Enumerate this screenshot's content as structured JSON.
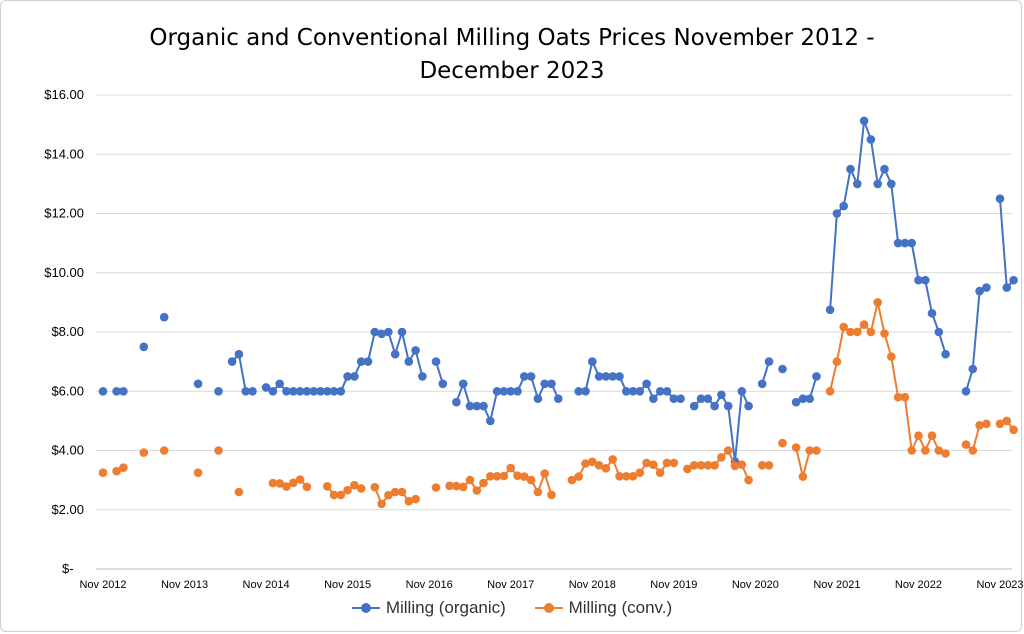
{
  "chart_data": {
    "type": "line",
    "title_line1": "Organic and Conventional Milling Oats Prices November 2012 -",
    "title_line2": "December 2023",
    "x_tick_labels": [
      "Nov 2012",
      "Nov 2013",
      "Nov 2014",
      "Nov 2015",
      "Nov 2016",
      "Nov 2017",
      "Nov 2018",
      "Nov 2019",
      "Nov 2020",
      "Nov 2021",
      "Nov 2022",
      "Nov 2023"
    ],
    "y_tick_labels": [
      "$-",
      "$2.00",
      "$4.00",
      "$6.00",
      "$8.00",
      "$10.00",
      "$12.00",
      "$14.00",
      "$16.00"
    ],
    "ylim": [
      0,
      16
    ],
    "y_tick_step": 2,
    "x_start": "2012-11",
    "x_end": "2023-11",
    "grid": true,
    "legend_position": "bottom",
    "series": [
      {
        "name": "Milling (organic)",
        "color": "#4472c4",
        "points": [
          [
            "2012-11",
            6.0
          ],
          [
            "2013-01",
            6.0
          ],
          [
            "2013-02",
            6.0
          ],
          [
            "2013-05",
            7.5
          ],
          [
            "2013-08",
            8.5
          ],
          [
            "2014-01",
            6.25
          ],
          [
            "2014-04",
            6.0
          ],
          [
            "2014-06",
            7.0
          ],
          [
            "2014-07",
            7.25
          ],
          [
            "2014-08",
            6.0
          ],
          [
            "2014-09",
            6.0
          ],
          [
            "2014-11",
            6.13
          ],
          [
            "2014-12",
            6.0
          ],
          [
            "2015-01",
            6.25
          ],
          [
            "2015-02",
            6.0
          ],
          [
            "2015-03",
            6.0
          ],
          [
            "2015-04",
            6.0
          ],
          [
            "2015-05",
            6.0
          ],
          [
            "2015-06",
            6.0
          ],
          [
            "2015-07",
            6.0
          ],
          [
            "2015-08",
            6.0
          ],
          [
            "2015-09",
            6.0
          ],
          [
            "2015-10",
            6.0
          ],
          [
            "2015-11",
            6.5
          ],
          [
            "2015-12",
            6.5
          ],
          [
            "2016-01",
            7.0
          ],
          [
            "2016-02",
            7.0
          ],
          [
            "2016-03",
            8.0
          ],
          [
            "2016-04",
            7.94
          ],
          [
            "2016-05",
            8.0
          ],
          [
            "2016-06",
            7.25
          ],
          [
            "2016-07",
            8.0
          ],
          [
            "2016-08",
            7.0
          ],
          [
            "2016-09",
            7.38
          ],
          [
            "2016-10",
            6.5
          ],
          [
            "2016-12",
            7.0
          ],
          [
            "2017-01",
            6.25
          ],
          [
            "2017-03",
            5.63
          ],
          [
            "2017-04",
            6.25
          ],
          [
            "2017-05",
            5.5
          ],
          [
            "2017-06",
            5.5
          ],
          [
            "2017-07",
            5.5
          ],
          [
            "2017-08",
            5.0
          ],
          [
            "2017-09",
            6.0
          ],
          [
            "2017-10",
            6.0
          ],
          [
            "2017-11",
            6.0
          ],
          [
            "2017-12",
            6.0
          ],
          [
            "2018-01",
            6.5
          ],
          [
            "2018-02",
            6.5
          ],
          [
            "2018-03",
            5.75
          ],
          [
            "2018-04",
            6.25
          ],
          [
            "2018-05",
            6.25
          ],
          [
            "2018-06",
            5.75
          ],
          [
            "2018-09",
            6.0
          ],
          [
            "2018-10",
            6.0
          ],
          [
            "2018-11",
            7.0
          ],
          [
            "2018-12",
            6.5
          ],
          [
            "2019-01",
            6.5
          ],
          [
            "2019-02",
            6.5
          ],
          [
            "2019-03",
            6.5
          ],
          [
            "2019-04",
            6.0
          ],
          [
            "2019-05",
            6.0
          ],
          [
            "2019-06",
            6.0
          ],
          [
            "2019-07",
            6.25
          ],
          [
            "2019-08",
            5.75
          ],
          [
            "2019-09",
            6.0
          ],
          [
            "2019-10",
            6.0
          ],
          [
            "2019-11",
            5.75
          ],
          [
            "2019-12",
            5.75
          ],
          [
            "2020-02",
            5.5
          ],
          [
            "2020-03",
            5.75
          ],
          [
            "2020-04",
            5.75
          ],
          [
            "2020-05",
            5.5
          ],
          [
            "2020-06",
            5.88
          ],
          [
            "2020-07",
            5.5
          ],
          [
            "2020-08",
            3.63
          ],
          [
            "2020-09",
            6.0
          ],
          [
            "2020-10",
            5.5
          ],
          [
            "2020-12",
            6.25
          ],
          [
            "2021-01",
            7.0
          ],
          [
            "2021-03",
            6.75
          ],
          [
            "2021-05",
            5.63
          ],
          [
            "2021-06",
            5.75
          ],
          [
            "2021-07",
            5.75
          ],
          [
            "2021-08",
            6.5
          ],
          [
            "2021-10",
            8.75
          ],
          [
            "2021-11",
            12.0
          ],
          [
            "2021-12",
            12.25
          ],
          [
            "2022-01",
            13.5
          ],
          [
            "2022-02",
            13.0
          ],
          [
            "2022-03",
            15.13
          ],
          [
            "2022-04",
            14.5
          ],
          [
            "2022-05",
            13.0
          ],
          [
            "2022-06",
            13.5
          ],
          [
            "2022-07",
            13.0
          ],
          [
            "2022-08",
            11.0
          ],
          [
            "2022-09",
            11.0
          ],
          [
            "2022-10",
            11.0
          ],
          [
            "2022-11",
            9.75
          ],
          [
            "2022-12",
            9.75
          ],
          [
            "2023-01",
            8.63
          ],
          [
            "2023-02",
            8.0
          ],
          [
            "2023-03",
            7.25
          ],
          [
            "2023-06",
            6.0
          ],
          [
            "2023-07",
            6.75
          ],
          [
            "2023-08",
            9.38
          ],
          [
            "2023-09",
            9.5
          ],
          [
            "2023-11",
            12.5
          ],
          [
            "2023-12",
            9.5
          ],
          [
            "2024-01",
            9.75
          ]
        ]
      },
      {
        "name": "Milling (conv.)",
        "color": "#ed7d31",
        "points": [
          [
            "2012-11",
            3.25
          ],
          [
            "2013-01",
            3.3
          ],
          [
            "2013-02",
            3.42
          ],
          [
            "2013-05",
            3.93
          ],
          [
            "2013-08",
            4.0
          ],
          [
            "2014-01",
            3.25
          ],
          [
            "2014-04",
            4.0
          ],
          [
            "2014-07",
            2.6
          ],
          [
            "2014-12",
            2.9
          ],
          [
            "2015-01",
            2.89
          ],
          [
            "2015-02",
            2.78
          ],
          [
            "2015-03",
            2.91
          ],
          [
            "2015-04",
            3.02
          ],
          [
            "2015-05",
            2.77
          ],
          [
            "2015-08",
            2.79
          ],
          [
            "2015-09",
            2.5
          ],
          [
            "2015-10",
            2.5
          ],
          [
            "2015-11",
            2.66
          ],
          [
            "2015-12",
            2.83
          ],
          [
            "2016-01",
            2.72
          ],
          [
            "2016-03",
            2.76
          ],
          [
            "2016-04",
            2.2
          ],
          [
            "2016-05",
            2.49
          ],
          [
            "2016-06",
            2.6
          ],
          [
            "2016-07",
            2.6
          ],
          [
            "2016-08",
            2.29
          ],
          [
            "2016-09",
            2.36
          ],
          [
            "2016-12",
            2.75
          ],
          [
            "2017-02",
            2.81
          ],
          [
            "2017-03",
            2.8
          ],
          [
            "2017-04",
            2.77
          ],
          [
            "2017-05",
            3.0
          ],
          [
            "2017-06",
            2.65
          ],
          [
            "2017-07",
            2.9
          ],
          [
            "2017-08",
            3.13
          ],
          [
            "2017-09",
            3.13
          ],
          [
            "2017-10",
            3.14
          ],
          [
            "2017-11",
            3.41
          ],
          [
            "2017-12",
            3.15
          ],
          [
            "2018-01",
            3.12
          ],
          [
            "2018-02",
            3.0
          ],
          [
            "2018-03",
            2.6
          ],
          [
            "2018-04",
            3.22
          ],
          [
            "2018-05",
            2.5
          ],
          [
            "2018-08",
            3.0
          ],
          [
            "2018-09",
            3.12
          ],
          [
            "2018-10",
            3.56
          ],
          [
            "2018-11",
            3.62
          ],
          [
            "2018-12",
            3.5
          ],
          [
            "2019-01",
            3.4
          ],
          [
            "2019-02",
            3.7
          ],
          [
            "2019-03",
            3.13
          ],
          [
            "2019-04",
            3.13
          ],
          [
            "2019-05",
            3.13
          ],
          [
            "2019-06",
            3.25
          ],
          [
            "2019-07",
            3.58
          ],
          [
            "2019-08",
            3.52
          ],
          [
            "2019-09",
            3.25
          ],
          [
            "2019-10",
            3.58
          ],
          [
            "2019-11",
            3.58
          ],
          [
            "2020-01",
            3.38
          ],
          [
            "2020-02",
            3.5
          ],
          [
            "2020-03",
            3.5
          ],
          [
            "2020-04",
            3.5
          ],
          [
            "2020-05",
            3.5
          ],
          [
            "2020-06",
            3.77
          ],
          [
            "2020-07",
            4.0
          ],
          [
            "2020-08",
            3.48
          ],
          [
            "2020-09",
            3.52
          ],
          [
            "2020-10",
            3.0
          ],
          [
            "2020-12",
            3.5
          ],
          [
            "2021-01",
            3.5
          ],
          [
            "2021-03",
            4.25
          ],
          [
            "2021-05",
            4.1
          ],
          [
            "2021-06",
            3.12
          ],
          [
            "2021-07",
            4.0
          ],
          [
            "2021-08",
            4.0
          ],
          [
            "2021-10",
            6.0
          ],
          [
            "2021-11",
            7.0
          ],
          [
            "2021-12",
            8.17
          ],
          [
            "2022-01",
            8.0
          ],
          [
            "2022-02",
            8.0
          ],
          [
            "2022-03",
            8.25
          ],
          [
            "2022-04",
            8.0
          ],
          [
            "2022-05",
            9.0
          ],
          [
            "2022-06",
            7.95
          ],
          [
            "2022-07",
            7.17
          ],
          [
            "2022-08",
            5.8
          ],
          [
            "2022-09",
            5.8
          ],
          [
            "2022-10",
            4.0
          ],
          [
            "2022-11",
            4.5
          ],
          [
            "2022-12",
            4.0
          ],
          [
            "2023-01",
            4.5
          ],
          [
            "2023-02",
            4.0
          ],
          [
            "2023-03",
            3.9
          ],
          [
            "2023-06",
            4.2
          ],
          [
            "2023-07",
            4.0
          ],
          [
            "2023-08",
            4.85
          ],
          [
            "2023-09",
            4.9
          ],
          [
            "2023-11",
            4.9
          ],
          [
            "2023-12",
            5.0
          ],
          [
            "2024-01",
            4.7
          ]
        ]
      }
    ]
  }
}
